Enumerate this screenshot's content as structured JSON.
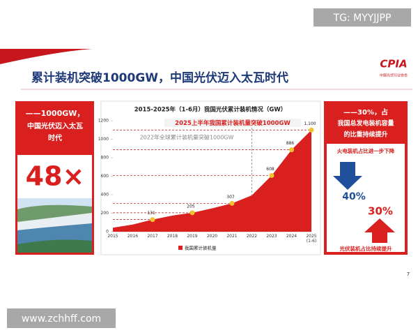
{
  "header": {
    "title": "累计装机突破1000GW，中国光伏迈入太瓦时代",
    "logo": "CPIA",
    "logo_sub": "中国光伏行业协会"
  },
  "watermarks": [
    "TG: MYYJJPP",
    "www.zchhff.com"
  ],
  "left_panel": {
    "lines": [
      "——1000GW，",
      "中国光伏迈入太瓦",
      "时代"
    ],
    "big": "48×"
  },
  "right_panel": {
    "lines": [
      "——30%，占",
      "我国总发电装机容量",
      "的比重持续提升"
    ],
    "down_label": "火电装机占比进一步下降",
    "down_value": "40%",
    "up_value": "30%",
    "up_label": "光伏装机占比持续提升"
  },
  "page_number": "7",
  "chart_data": {
    "type": "area",
    "title": "2015-2025年（1-6月）我国光伏累计装机情况（GW）",
    "categories": [
      "2015",
      "2016",
      "2017",
      "2018",
      "2019",
      "2020",
      "2021",
      "2022",
      "2023",
      "2024",
      "2025 (1-6)"
    ],
    "series": [
      {
        "name": "我国累计装机量",
        "color": "#d9201f",
        "values": [
          43,
          77,
          131,
          175,
          205,
          253,
          307,
          393,
          608,
          886,
          1100
        ],
        "value_labels": [
          null,
          null,
          "131",
          null,
          "205",
          null,
          "307",
          null,
          "608",
          "886",
          "1,100"
        ]
      }
    ],
    "marker_color": "#f2c230",
    "ylim": [
      0,
      1200
    ],
    "yticks": [
      0,
      200,
      400,
      600,
      800,
      1000,
      1200
    ],
    "annotations": [
      "2025上半年我国累计装机量突破1000GW",
      "2022年全球累计装机量突破1000GW"
    ]
  }
}
